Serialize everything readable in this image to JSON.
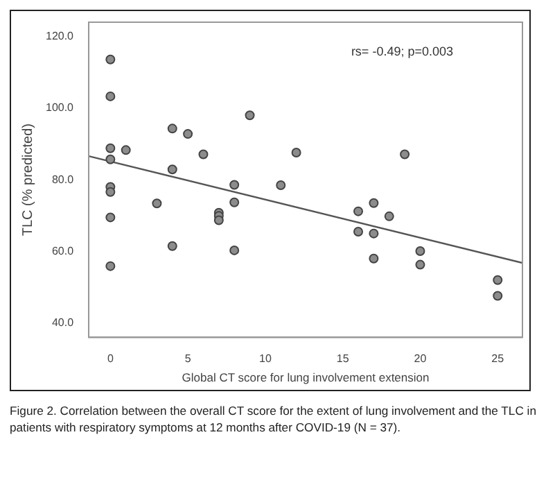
{
  "chart_data": {
    "type": "scatter",
    "xlabel": "Global CT score for lung involvement extension",
    "ylabel": "TLC (% predicted)",
    "series": [
      {
        "color": "#8c8c8c",
        "marker": "circle",
        "x": [
          0,
          0,
          0,
          0,
          0,
          0,
          0,
          0,
          1,
          3,
          4,
          4,
          4,
          5,
          6,
          7,
          7,
          7,
          8,
          8,
          8,
          9,
          11,
          12,
          16,
          16,
          17,
          17,
          17,
          18,
          19,
          20,
          20,
          25,
          25
        ],
        "values": [
          113.6,
          103.3,
          88.8,
          85.7,
          78,
          76.6,
          69.5,
          55.9,
          88.3,
          73.4,
          94.3,
          82.9,
          61.5,
          92.8,
          87.1,
          70.8,
          69.9,
          68.7,
          78.6,
          73.7,
          60.3,
          98,
          78.5,
          87.6,
          71.2,
          65.5,
          73.5,
          65,
          58,
          69.8,
          87.1,
          60.1,
          56.3,
          52,
          47.6
        ]
      },
      {
        "type": "line",
        "color": "#555555",
        "marker": "none",
        "x": [
          -1.4,
          26.6
        ],
        "values": [
          86.6,
          56.8
        ]
      }
    ],
    "xlim": [
      -1.4,
      26.6
    ],
    "xticks": [
      0,
      5,
      10,
      15,
      20,
      25
    ],
    "ylim": [
      36,
      124
    ],
    "yticks": [
      {
        "value": 40,
        "label": "40.0"
      },
      {
        "value": 60,
        "label": "60.0"
      },
      {
        "value": 80,
        "label": "80.0"
      },
      {
        "value": 100,
        "label": "100.0"
      },
      {
        "value": 120,
        "label": "120.0"
      }
    ],
    "grid": false,
    "legend": false,
    "annotations": [
      "rs= -0.49; p=0.003",
      "Figure 2. Correlation between the overall CT score for the extent of lung involvement and the TLC in patients with respiratory symptoms at 12 months after COVID-19 (N = 37)."
    ]
  }
}
